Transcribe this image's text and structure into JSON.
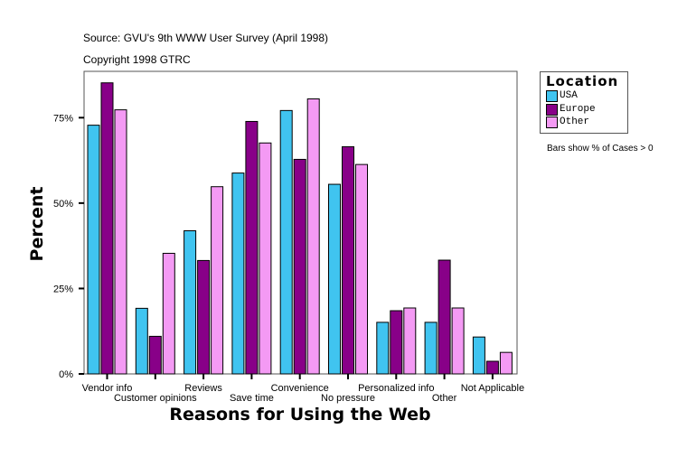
{
  "source_line": "Source: GVU's 9th WWW User Survey (April 1998)",
  "copyright_line": "Copyright 1998 GTRC",
  "note": "Bars show % of Cases > 0",
  "chart_data": {
    "type": "bar",
    "title": "",
    "xlabel": "Reasons for Using the Web",
    "ylabel": "Percent",
    "ylim": [
      0,
      88
    ],
    "yticks": [
      0,
      25,
      50,
      75
    ],
    "ytick_labels": [
      "0%",
      "25%",
      "50%",
      "75%"
    ],
    "grid": false,
    "legend": {
      "title": "Location",
      "placement": "right"
    },
    "categories": [
      "Vendor info",
      "Customer opinions",
      "Reviews",
      "Save time",
      "Convenience",
      "No pressure",
      "Personalized info",
      "Other",
      "Not Applicable"
    ],
    "series": [
      {
        "name": "USA",
        "color": "#40C4F0",
        "values": [
          72.8,
          19.2,
          41.9,
          58.8,
          77.1,
          55.5,
          15.1,
          15.1,
          10.8
        ]
      },
      {
        "name": "Europe",
        "color": "#880088",
        "values": [
          85.2,
          11.0,
          33.2,
          73.9,
          62.8,
          66.5,
          18.5,
          33.3,
          3.7
        ]
      },
      {
        "name": "Other",
        "color": "#F49AF4",
        "values": [
          77.3,
          35.3,
          54.8,
          67.6,
          80.5,
          61.3,
          19.3,
          19.3,
          6.3
        ]
      }
    ]
  }
}
